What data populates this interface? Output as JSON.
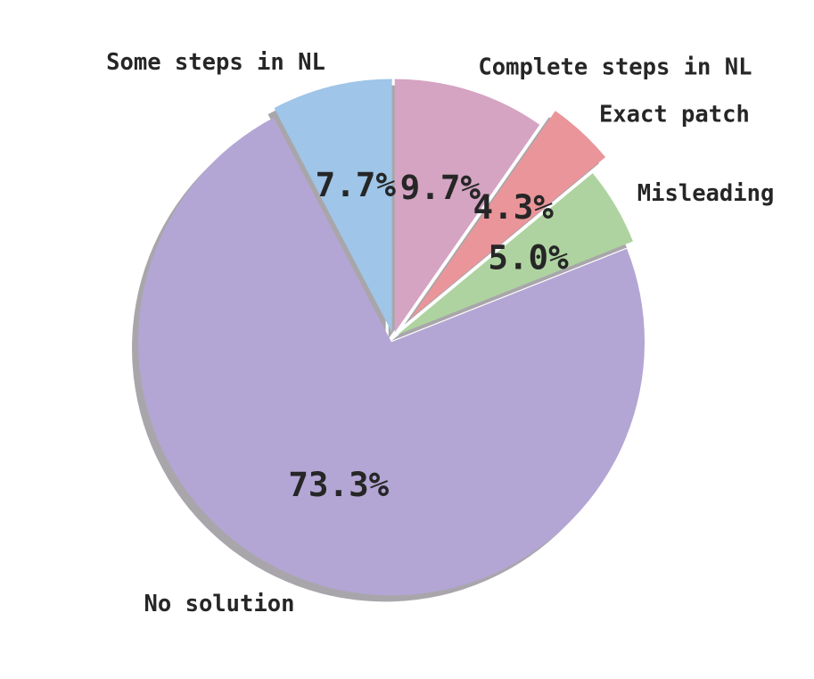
{
  "figure": {
    "background": "#ffffff",
    "text_color": "#262626"
  },
  "chart_data": {
    "type": "pie",
    "title": "",
    "start_angle": "top",
    "direction": "clockwise",
    "shadow": true,
    "shadow_color": "#a9a6ab",
    "legend": "none",
    "slices": [
      {
        "label": "Complete steps in NL",
        "value": 9.7,
        "pct_label": "9.7%",
        "color": "#d4a4c2",
        "explode": 0.02
      },
      {
        "label": "Exact patch",
        "value": 4.3,
        "pct_label": "4.3%",
        "color": "#ea9599",
        "explode": 0.1
      },
      {
        "label": "Misleading",
        "value": 5.0,
        "pct_label": "5.0%",
        "color": "#aed3a0",
        "explode": 0.02
      },
      {
        "label": "No solution",
        "value": 73.3,
        "pct_label": "73.3%",
        "color": "#b3a6d4",
        "explode": 0.02
      },
      {
        "label": "Some steps in NL",
        "value": 7.7,
        "pct_label": "7.7%",
        "color": "#9fc5e8",
        "explode": 0.02
      }
    ]
  }
}
